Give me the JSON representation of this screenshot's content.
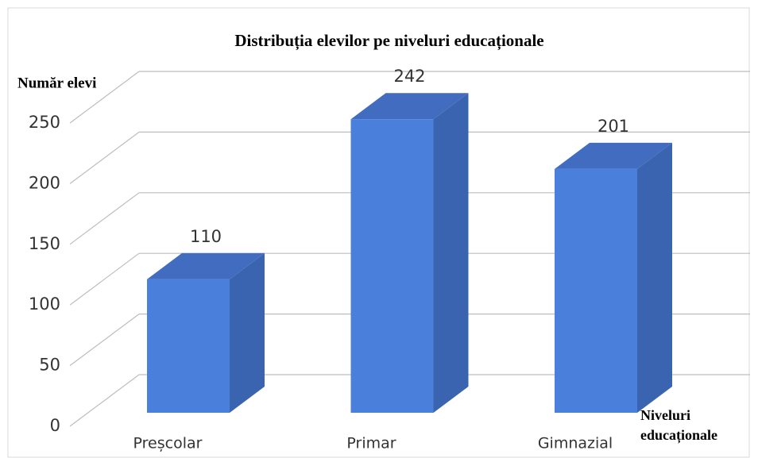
{
  "chart_data": {
    "type": "bar3d",
    "title": "Distribuția elevilor pe niveluri educaționale",
    "ylabel": "Număr elevi",
    "xlabel_lines": [
      "Niveluri",
      "educaționale"
    ],
    "categories": [
      "Preșcolar",
      "Primar",
      "Gimnazial"
    ],
    "values": [
      110,
      242,
      201
    ],
    "color": "#4a7fdc",
    "ylim": [
      0,
      250
    ],
    "yticks": [
      0,
      50,
      100,
      150,
      200,
      250
    ],
    "grid": true
  }
}
